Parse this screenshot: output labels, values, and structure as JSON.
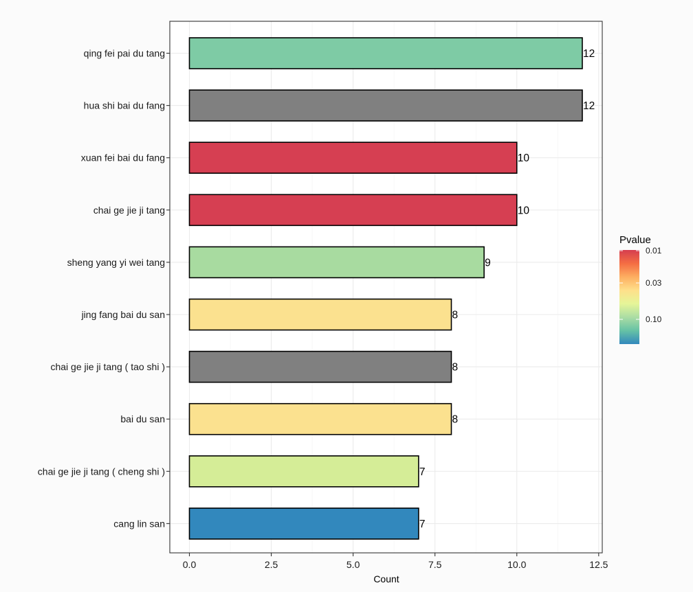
{
  "chart_data": {
    "type": "bar",
    "orientation": "horizontal",
    "categories": [
      "qing fei pai du tang",
      "hua shi bai du fang",
      "xuan fei bai du fang",
      "chai ge jie ji tang",
      "sheng yang yi wei tang",
      "jing fang bai du san",
      "chai ge jie ji tang ( tao shi )",
      "bai du san",
      "chai ge jie ji tang ( cheng shi )",
      "cang lin san"
    ],
    "values": [
      12,
      12,
      10,
      10,
      9,
      8,
      8,
      8,
      7,
      7
    ],
    "value_labels": [
      "12",
      "12",
      "10",
      "10",
      "9",
      "8",
      "8",
      "8",
      "7",
      "7"
    ],
    "bar_colors": [
      "#7ecba5",
      "#808080",
      "#d63f52",
      "#d63f52",
      "#a8dba0",
      "#fbe18f",
      "#808080",
      "#fbe18f",
      "#d5ed97",
      "#3288bd"
    ],
    "xlabel": "Count",
    "ylabel": "",
    "xlim": [
      0,
      12.6
    ],
    "xticks": [
      0,
      2.5,
      5,
      7.5,
      10,
      12.5
    ],
    "xtick_labels": [
      "0.0",
      "2.5",
      "5.0",
      "7.5",
      "10.0",
      "12.5"
    ],
    "grid": true,
    "legend": {
      "title": "Pvalue",
      "placement": "right",
      "type": "colorbar",
      "labels": [
        "0.01",
        "0.03",
        "0.10"
      ],
      "colors": [
        "#d53e4f",
        "#f46d43",
        "#fdae61",
        "#fee08b",
        "#e6f598",
        "#abdda4",
        "#66c2a5",
        "#3288bd"
      ]
    }
  }
}
